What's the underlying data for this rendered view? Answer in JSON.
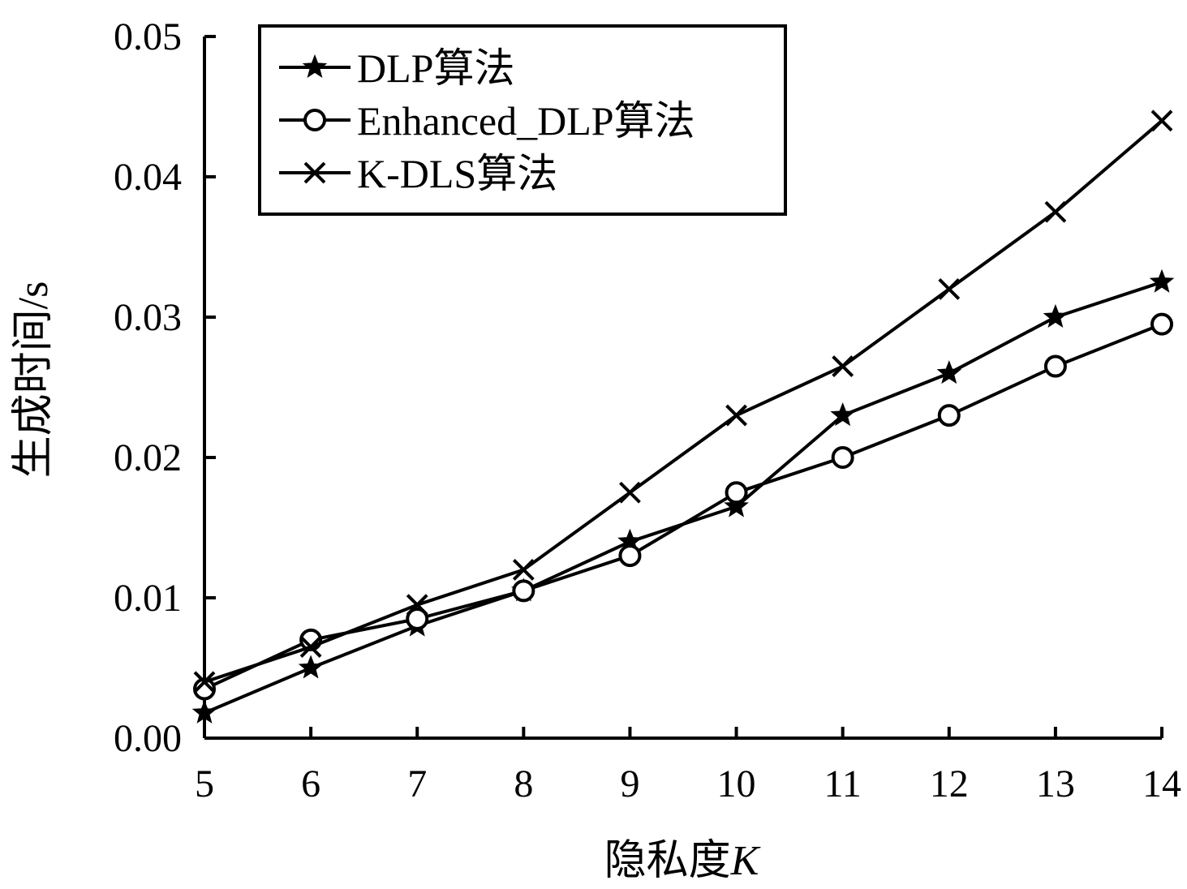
{
  "chart_data": {
    "type": "line",
    "title": "",
    "xlabel": "隐私度",
    "xlabel_var": "K",
    "ylabel": "生成时间/s",
    "x": [
      5,
      6,
      7,
      8,
      9,
      10,
      11,
      12,
      13,
      14
    ],
    "xlim": [
      5,
      14
    ],
    "ylim": [
      0,
      0.05
    ],
    "xticks": [
      "5",
      "6",
      "7",
      "8",
      "9",
      "10",
      "11",
      "12",
      "13",
      "14"
    ],
    "yticks": [
      "0.00",
      "0.01",
      "0.02",
      "0.03",
      "0.04",
      "0.05"
    ],
    "grid": false,
    "legend_position": "top-left",
    "series": [
      {
        "name": "DLP算法",
        "marker": "star",
        "values": [
          0.0018,
          0.005,
          0.008,
          0.0105,
          0.014,
          0.0165,
          0.023,
          0.026,
          0.03,
          0.0325
        ]
      },
      {
        "name": "Enhanced_DLP算法",
        "marker": "circle",
        "values": [
          0.0035,
          0.007,
          0.0085,
          0.0105,
          0.013,
          0.0175,
          0.02,
          0.023,
          0.0265,
          0.0295
        ]
      },
      {
        "name": "K-DLS算法",
        "marker": "cross",
        "values": [
          0.004,
          0.0065,
          0.0095,
          0.012,
          0.0175,
          0.023,
          0.0265,
          0.032,
          0.0375,
          0.044
        ]
      }
    ],
    "colors": {
      "line": "#000000",
      "background": "#ffffff"
    }
  }
}
